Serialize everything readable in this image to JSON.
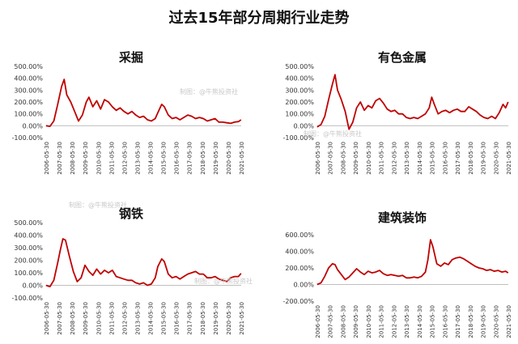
{
  "title": "过去15年部分周期行业走势",
  "watermark": "制图：@牛熊投资社",
  "colors": {
    "line": "#c00000",
    "axis": "#bfbfbf",
    "text": "#333333"
  },
  "chart_data": [
    {
      "type": "line",
      "title": "采掘",
      "x_ticks": [
        "2006-05-30",
        "2007-05-30",
        "2008-05-30",
        "2009-05-30",
        "2010-05-30",
        "2011-05-30",
        "2012-05-30",
        "2013-05-30",
        "2014-05-30",
        "2015-05-30",
        "2016-05-30",
        "2017-05-30",
        "2018-05-30",
        "2019-05-30",
        "2020-05-30",
        "2021-05-30"
      ],
      "y_ticks": [
        "-100.00%",
        "0.00%",
        "100.00%",
        "200.00%",
        "300.00%",
        "400.00%",
        "500.00%"
      ],
      "ylim": [
        -100,
        500
      ],
      "x": [
        2006.4,
        2006.7,
        2007.0,
        2007.3,
        2007.6,
        2007.8,
        2008.0,
        2008.3,
        2008.6,
        2008.9,
        2009.2,
        2009.5,
        2009.7,
        2010.0,
        2010.3,
        2010.6,
        2010.9,
        2011.2,
        2011.5,
        2011.8,
        2012.1,
        2012.4,
        2012.7,
        2013.0,
        2013.3,
        2013.6,
        2013.9,
        2014.2,
        2014.5,
        2014.8,
        2015.0,
        2015.3,
        2015.5,
        2015.8,
        2016.1,
        2016.4,
        2016.7,
        2017.0,
        2017.3,
        2017.6,
        2017.9,
        2018.2,
        2018.5,
        2018.8,
        2019.1,
        2019.4,
        2019.7,
        2020.0,
        2020.3,
        2020.6,
        2020.9,
        2021.2,
        2021.4
      ],
      "values": [
        0,
        -5,
        40,
        180,
        330,
        390,
        260,
        200,
        120,
        40,
        90,
        200,
        240,
        160,
        210,
        140,
        220,
        200,
        160,
        130,
        150,
        120,
        100,
        120,
        90,
        70,
        80,
        50,
        40,
        60,
        110,
        180,
        160,
        90,
        60,
        70,
        50,
        70,
        90,
        80,
        60,
        70,
        60,
        40,
        50,
        60,
        30,
        30,
        25,
        20,
        30,
        35,
        50
      ]
    },
    {
      "type": "line",
      "title": "有色金属",
      "x_ticks": [
        "2006-05-30",
        "2007-05-30",
        "2008-05-30",
        "2009-05-30",
        "2010-05-30",
        "2011-05-30",
        "2012-05-30",
        "2013-05-30",
        "2014-05-30",
        "2015-05-30",
        "2016-05-30",
        "2017-05-30",
        "2018-05-30",
        "2019-05-30",
        "2020-05-30",
        "2021-05-30"
      ],
      "y_ticks": [
        "-100.00%",
        "0.00%",
        "100.00%",
        "200.00%",
        "300.00%",
        "400.00%",
        "500.00%"
      ],
      "ylim": [
        -100,
        500
      ],
      "x": [
        2006.4,
        2006.7,
        2007.0,
        2007.3,
        2007.6,
        2007.8,
        2008.0,
        2008.3,
        2008.6,
        2008.9,
        2009.2,
        2009.5,
        2009.8,
        2010.1,
        2010.4,
        2010.7,
        2011.0,
        2011.3,
        2011.6,
        2011.9,
        2012.2,
        2012.5,
        2012.8,
        2013.1,
        2013.4,
        2013.7,
        2014.0,
        2014.3,
        2014.6,
        2014.9,
        2015.2,
        2015.4,
        2015.6,
        2015.9,
        2016.2,
        2016.5,
        2016.8,
        2017.1,
        2017.4,
        2017.7,
        2018.0,
        2018.3,
        2018.6,
        2018.9,
        2019.2,
        2019.5,
        2019.8,
        2020.1,
        2020.4,
        2020.7,
        2021.0,
        2021.2,
        2021.4
      ],
      "values": [
        -10,
        10,
        80,
        220,
        350,
        430,
        300,
        220,
        120,
        -30,
        30,
        150,
        200,
        130,
        170,
        150,
        210,
        230,
        190,
        140,
        120,
        130,
        100,
        100,
        70,
        60,
        70,
        60,
        80,
        100,
        150,
        240,
        180,
        100,
        120,
        130,
        110,
        130,
        140,
        120,
        120,
        160,
        140,
        120,
        90,
        70,
        60,
        80,
        60,
        110,
        180,
        150,
        200
      ]
    },
    {
      "type": "line",
      "title": "钢铁",
      "x_ticks": [
        "2006-05-30",
        "2007-05-30",
        "2008-05-30",
        "2009-05-30",
        "2010-05-30",
        "2011-05-30",
        "2012-05-30",
        "2013-05-30",
        "2014-05-30",
        "2015-05-30",
        "2016-05-30",
        "2017-05-30",
        "2018-05-30",
        "2019-05-30",
        "2020-05-30",
        "2021-05-30"
      ],
      "y_ticks": [
        "-100.00%",
        "0.00%",
        "100.00%",
        "200.00%",
        "300.00%",
        "400.00%",
        "500.00%"
      ],
      "ylim": [
        -100,
        500
      ],
      "x": [
        2006.4,
        2006.7,
        2007.0,
        2007.3,
        2007.5,
        2007.7,
        2007.9,
        2008.2,
        2008.5,
        2008.8,
        2009.1,
        2009.4,
        2009.7,
        2010.0,
        2010.3,
        2010.6,
        2010.9,
        2011.2,
        2011.5,
        2011.8,
        2012.1,
        2012.4,
        2012.7,
        2013.0,
        2013.3,
        2013.6,
        2013.9,
        2014.2,
        2014.5,
        2014.8,
        2015.0,
        2015.3,
        2015.5,
        2015.8,
        2016.1,
        2016.4,
        2016.7,
        2017.0,
        2017.3,
        2017.6,
        2017.9,
        2018.2,
        2018.5,
        2018.8,
        2019.1,
        2019.4,
        2019.7,
        2020.0,
        2020.3,
        2020.6,
        2020.9,
        2021.2,
        2021.4
      ],
      "values": [
        0,
        -10,
        40,
        180,
        280,
        370,
        360,
        230,
        110,
        30,
        60,
        160,
        110,
        80,
        130,
        90,
        120,
        100,
        120,
        70,
        60,
        50,
        40,
        40,
        20,
        10,
        20,
        0,
        10,
        60,
        150,
        210,
        190,
        90,
        60,
        70,
        50,
        70,
        90,
        100,
        110,
        90,
        90,
        60,
        60,
        70,
        50,
        40,
        30,
        60,
        70,
        70,
        95
      ]
    },
    {
      "type": "line",
      "title": "建筑装饰",
      "x_ticks": [
        "2006-05-30",
        "2007-05-30",
        "2008-05-30",
        "2009-05-30",
        "2010-05-30",
        "2011-05-30",
        "2012-05-30",
        "2013-05-30",
        "2014-05-30",
        "2015-05-30",
        "2016-05-30",
        "2017-05-30",
        "2018-05-30",
        "2019-05-30",
        "2020-05-30",
        "2021-05-30"
      ],
      "y_ticks": [
        "-200.00%",
        "0.00%",
        "200.00%",
        "400.00%",
        "600.00%"
      ],
      "ylim": [
        -200,
        600
      ],
      "x": [
        2006.4,
        2006.7,
        2007.0,
        2007.3,
        2007.6,
        2007.8,
        2008.0,
        2008.3,
        2008.6,
        2008.9,
        2009.2,
        2009.5,
        2009.8,
        2010.1,
        2010.4,
        2010.7,
        2011.0,
        2011.3,
        2011.6,
        2011.9,
        2012.2,
        2012.5,
        2012.8,
        2013.1,
        2013.4,
        2013.7,
        2014.0,
        2014.3,
        2014.6,
        2014.9,
        2015.1,
        2015.3,
        2015.5,
        2015.8,
        2016.1,
        2016.4,
        2016.7,
        2017.0,
        2017.3,
        2017.6,
        2017.9,
        2018.2,
        2018.5,
        2018.8,
        2019.1,
        2019.4,
        2019.7,
        2020.0,
        2020.3,
        2020.6,
        2020.9,
        2021.2,
        2021.4
      ],
      "values": [
        0,
        20,
        100,
        200,
        250,
        240,
        180,
        120,
        60,
        90,
        140,
        190,
        150,
        120,
        160,
        140,
        150,
        170,
        130,
        110,
        120,
        110,
        100,
        110,
        80,
        80,
        90,
        80,
        100,
        150,
        300,
        540,
        450,
        250,
        220,
        260,
        240,
        300,
        320,
        330,
        310,
        280,
        250,
        220,
        200,
        190,
        170,
        180,
        160,
        170,
        150,
        160,
        140
      ]
    }
  ]
}
